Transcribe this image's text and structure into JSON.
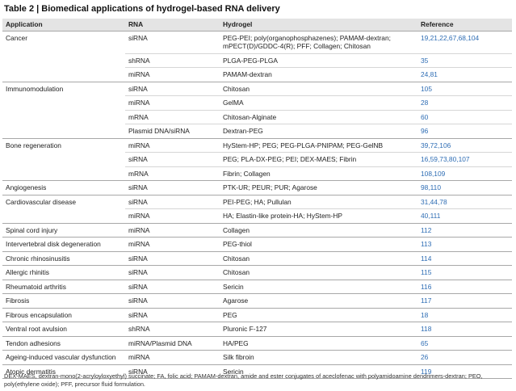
{
  "title": "Table 2 | Biomedical applications of hydrogel-based RNA delivery",
  "table": {
    "columns": [
      "Application",
      "RNA",
      "Hydrogel",
      "Reference"
    ],
    "groups": [
      {
        "application": "Cancer",
        "rows": [
          [
            "siRNA",
            "PEG-PEI; poly(organophosphazenes); PAMAM-dextran; mPECT(D)/GDDC-4(R); PFF; Collagen; Chitosan",
            "19,21,22,67,68,104"
          ],
          [
            "shRNA",
            "PLGA-PEG-PLGA",
            "35"
          ],
          [
            "miRNA",
            "PAMAM-dextran",
            "24,81"
          ]
        ]
      },
      {
        "application": "Immunomodulation",
        "rows": [
          [
            "siRNA",
            "Chitosan",
            "105"
          ],
          [
            "miRNA",
            "GelMA",
            "28"
          ],
          [
            "mRNA",
            "Chitosan-Alginate",
            "60"
          ],
          [
            "Plasmid DNA/siRNA",
            "Dextran-PEG",
            "96"
          ]
        ]
      },
      {
        "application": "Bone regeneration",
        "rows": [
          [
            "miRNA",
            "HyStem-HP; PEG; PEG-PLGA-PNIPAM; PEG-GelNB",
            "39,72,106"
          ],
          [
            "siRNA",
            "PEG; PLA-DX-PEG; PEI; DEX-MAES; Fibrin",
            "16,59,73,80,107"
          ],
          [
            "mRNA",
            "Fibrin; Collagen",
            "108,109"
          ]
        ]
      },
      {
        "application": "Angiogenesis",
        "rows": [
          [
            "siRNA",
            "PTK-UR; PEUR; PUR; Agarose",
            "98,110"
          ]
        ]
      },
      {
        "application": "Cardiovascular disease",
        "rows": [
          [
            "siRNA",
            "PEI-PEG; HA; Pullulan",
            "31,44,78"
          ],
          [
            "miRNA",
            "HA; Elastin-like protein-HA; HyStem-HP",
            "40,111"
          ]
        ]
      },
      {
        "application": "Spinal cord injury",
        "rows": [
          [
            "miRNA",
            "Collagen",
            "112"
          ]
        ]
      },
      {
        "application": "Intervertebral disk degeneration",
        "rows": [
          [
            "miRNA",
            "PEG-thiol",
            "113"
          ]
        ]
      },
      {
        "application": "Chronic rhinosinusitis",
        "rows": [
          [
            "siRNA",
            "Chitosan",
            "114"
          ]
        ]
      },
      {
        "application": "Allergic rhinitis",
        "rows": [
          [
            "siRNA",
            "Chitosan",
            "115"
          ]
        ]
      },
      {
        "application": "Rheumatoid arthritis",
        "rows": [
          [
            "siRNA",
            "Sericin",
            "116"
          ]
        ]
      },
      {
        "application": "Fibrosis",
        "rows": [
          [
            "siRNA",
            "Agarose",
            "117"
          ]
        ]
      },
      {
        "application": "Fibrous encapsulation",
        "rows": [
          [
            "siRNA",
            "PEG",
            "18"
          ]
        ]
      },
      {
        "application": "Ventral root avulsion",
        "rows": [
          [
            "shRNA",
            "Pluronic F-127",
            "118"
          ]
        ]
      },
      {
        "application": "Tendon adhesions",
        "rows": [
          [
            "miRNA/Plasmid DNA",
            "HA/PEG",
            "65"
          ]
        ]
      },
      {
        "application": "Ageing-induced vascular dysfunction",
        "rows": [
          [
            "miRNA",
            "Silk fibroin",
            "26"
          ]
        ]
      },
      {
        "application": "Atopic dermatitis",
        "rows": [
          [
            "siRNA",
            "Sericin",
            "119"
          ]
        ]
      }
    ]
  },
  "footnote": "DEX-MAES, dextran-mono(2-acryloyloxyethyl) succinate; FA, folic acid; PAMAM-dextran, amide and ester conjugates of aceclofenac with polyamidoamine dendrimers-dextran; PEO, poly(ethylene oxide); PFF, precursor fluid formulation."
}
